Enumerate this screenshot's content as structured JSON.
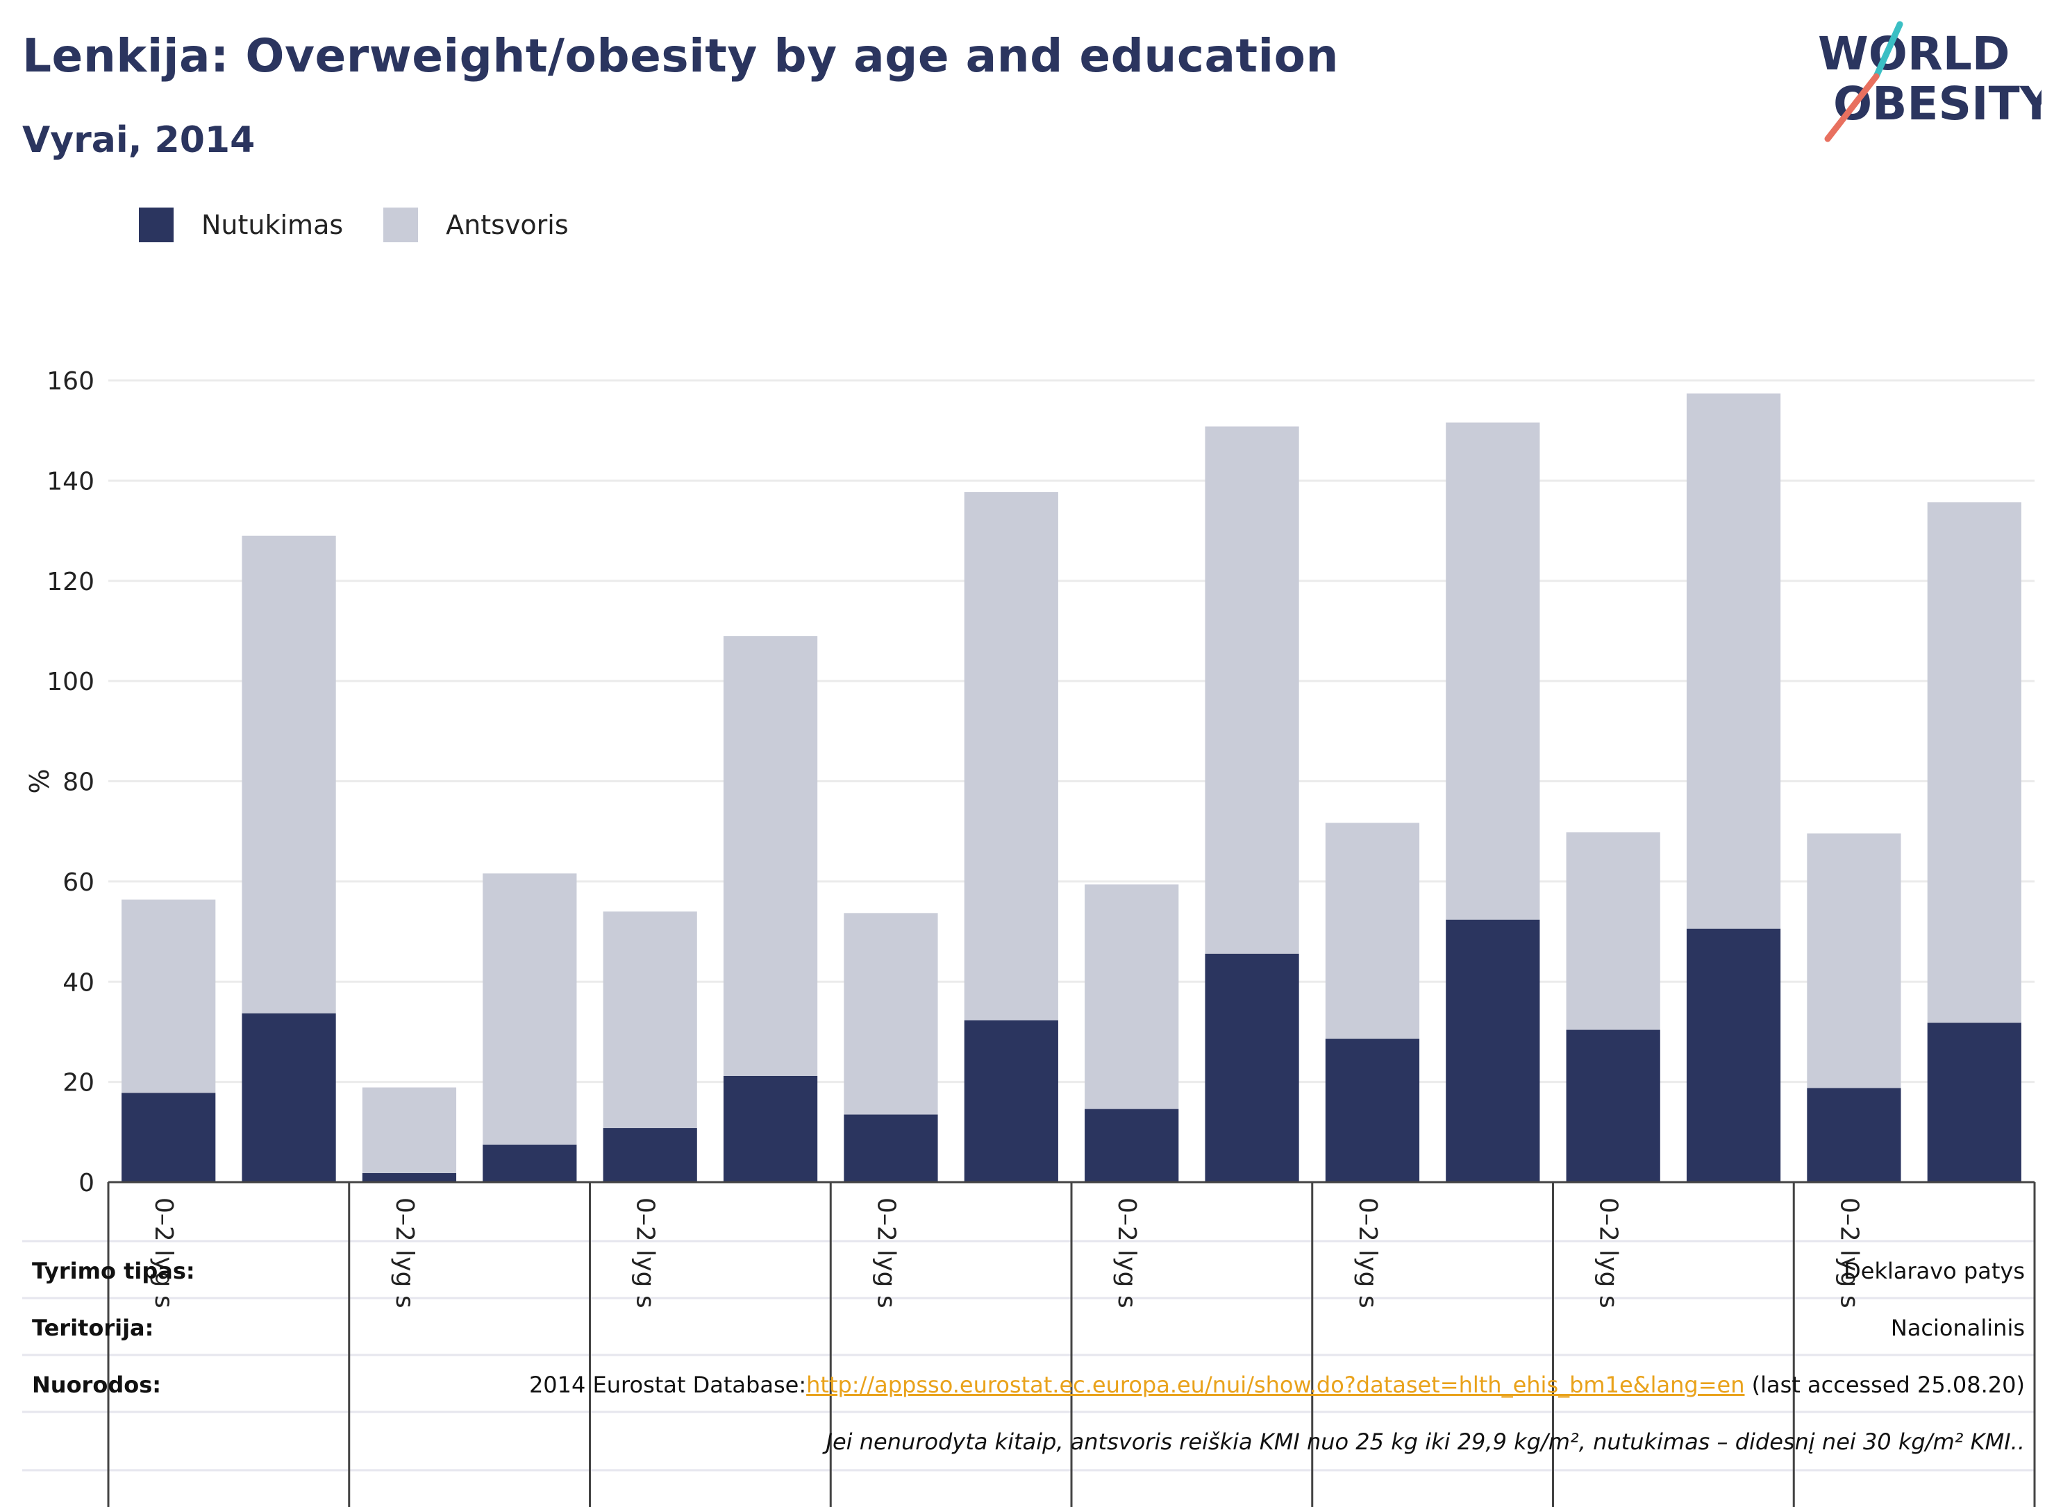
{
  "header": {
    "title": "Lenkija: Overweight/obesity by age and education",
    "subtitle": "Vyrai, 2014"
  },
  "logo": {
    "line1": "WORLD",
    "line2": "OBESITY",
    "colors": {
      "text": "#2b355f",
      "slash_top": "#3bbfc4",
      "slash_bottom": "#e8705f"
    }
  },
  "legend": [
    {
      "label": "Nutukimas",
      "color": "#2b355f"
    },
    {
      "label": "Antsvoris",
      "color": "#c9ccd8"
    }
  ],
  "chart_data": {
    "type": "bar",
    "stacked": true,
    "ylabel": "%",
    "ylim": [
      0,
      160
    ],
    "yticks": [
      0,
      20,
      40,
      60,
      80,
      100,
      120,
      140,
      160
    ],
    "grid": true,
    "legend_position": "top-left",
    "group_label": "0–2 lyg s",
    "groups": 8,
    "series": [
      {
        "name": "Nutukimas",
        "color": "#2b355f",
        "values": [
          17.8,
          33.7,
          1.8,
          7.5,
          10.8,
          21.2,
          13.5,
          32.3,
          14.6,
          45.6,
          28.6,
          52.4,
          30.4,
          50.6,
          18.8,
          31.8
        ]
      },
      {
        "name": "Antsvoris",
        "color": "#c9ccd8",
        "values": [
          38.6,
          95.3,
          17.1,
          54.1,
          43.2,
          87.8,
          40.2,
          105.4,
          44.8,
          105.2,
          43.1,
          99.2,
          39.4,
          106.8,
          50.8,
          103.9
        ]
      }
    ]
  },
  "meta": {
    "survey_label": "Tyrimo tipas:",
    "survey_value": "Deklaravo patys",
    "territory_label": "Teritorija:",
    "territory_value": "Nacionalinis",
    "refs_label": "Nuorodos:",
    "refs_prefix": "2014 Eurostat Database:",
    "refs_link": "http://appsso.eurostat.ec.europa.eu/nui/show.do?dataset=hlth_ehis_bm1e&lang=en",
    "refs_suffix": " (last accessed 25.08.20)",
    "note": "Jei nenurodyta kitaip, antsvoris reiškia KMI nuo 25 kg iki 29,9 kg/m², nutukimas – didesnį nei 30 kg/m² KMI.."
  }
}
